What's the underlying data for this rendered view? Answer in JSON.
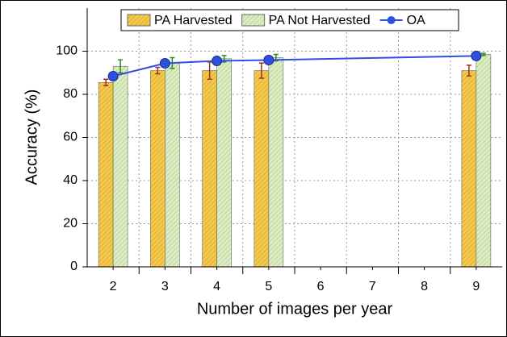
{
  "chart_data": {
    "type": "bar_line",
    "x_title": "Number of images per year",
    "y_title": "Accuracy (%)",
    "x": [
      2,
      3,
      4,
      5,
      9
    ],
    "xlim": [
      1.5,
      9.5
    ],
    "xticks": [
      2,
      3,
      4,
      5,
      6,
      7,
      8,
      9
    ],
    "ylim": [
      0,
      120
    ],
    "yticks": [
      0,
      20,
      40,
      60,
      80,
      100
    ],
    "grid": true,
    "series": [
      {
        "name": "PA Harvested",
        "type": "bar",
        "color": "#f7c948",
        "error_color": "#a0301e",
        "values": [
          85.5,
          91,
          91,
          91,
          91
        ],
        "errors": [
          1.5,
          1.5,
          4,
          3.5,
          2.5
        ]
      },
      {
        "name": "PA Not Harvested",
        "type": "bar",
        "color": "#dcefc0",
        "error_color": "#2a8a2a",
        "values": [
          93,
          94.5,
          96.5,
          97,
          98.5
        ],
        "errors": [
          3,
          2.5,
          1.5,
          1.5,
          0.5
        ]
      },
      {
        "name": "OA",
        "type": "line",
        "color": "#2f4fe0",
        "values": [
          88.4,
          94.4,
          95.5,
          95.9,
          97.8
        ]
      }
    ]
  }
}
